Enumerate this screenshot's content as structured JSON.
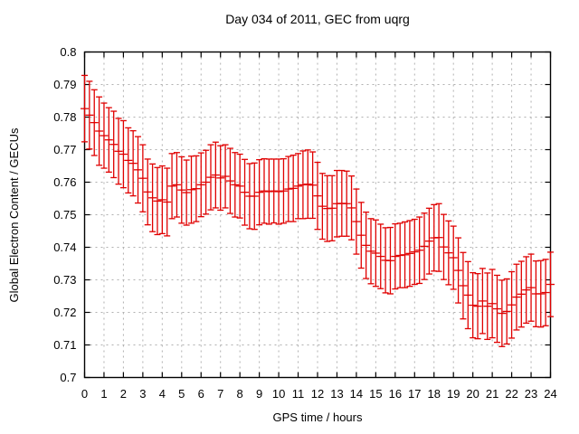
{
  "window": {
    "background": "#ffffff"
  },
  "chart_data": {
    "type": "scatter",
    "subtype": "yerrorbars",
    "title": "Day 034 of 2011, GEC from uqrg",
    "xlabel": "GPS time / hours",
    "ylabel": "Global Electron Content / GECUs",
    "xlim": [
      0,
      24
    ],
    "ylim": [
      0.7,
      0.8
    ],
    "grid": true,
    "legend": "none",
    "xticks": [
      0,
      1,
      2,
      3,
      4,
      5,
      6,
      7,
      8,
      9,
      10,
      11,
      12,
      13,
      14,
      15,
      16,
      17,
      18,
      19,
      20,
      21,
      22,
      23,
      24
    ],
    "ytick_values": [
      0.7,
      0.71,
      0.72,
      0.73,
      0.74,
      0.75,
      0.76,
      0.77,
      0.78,
      0.79,
      0.8
    ],
    "ytick_labels": [
      "0.7",
      "0.71",
      "0.72",
      "0.73",
      "0.74",
      "0.75",
      "0.76",
      "0.77",
      "0.78",
      "0.79",
      "0.8"
    ],
    "series_name": "GEC",
    "series_color": "#e00000",
    "grid_color": "#b0b0b0",
    "axis_color": "#000000",
    "points_format": [
      "gps_hour",
      "gec_value",
      "error_half_width"
    ],
    "points": [
      [
        0.0,
        0.7826,
        0.0102
      ],
      [
        0.25,
        0.7806,
        0.0104
      ],
      [
        0.5,
        0.7783,
        0.0101
      ],
      [
        0.75,
        0.7757,
        0.0105
      ],
      [
        1.0,
        0.7743,
        0.01
      ],
      [
        1.25,
        0.773,
        0.0099
      ],
      [
        1.5,
        0.7716,
        0.0102
      ],
      [
        1.75,
        0.7695,
        0.0101
      ],
      [
        2.0,
        0.7686,
        0.0103
      ],
      [
        2.25,
        0.7667,
        0.01
      ],
      [
        2.5,
        0.7658,
        0.01
      ],
      [
        2.75,
        0.7638,
        0.0102
      ],
      [
        3.0,
        0.7612,
        0.0103
      ],
      [
        3.25,
        0.757,
        0.0101
      ],
      [
        3.5,
        0.7552,
        0.0104
      ],
      [
        3.75,
        0.7542,
        0.0103
      ],
      [
        4.0,
        0.7546,
        0.0104
      ],
      [
        4.25,
        0.7539,
        0.0104
      ],
      [
        4.5,
        0.7588,
        0.01
      ],
      [
        4.75,
        0.7592,
        0.0099
      ],
      [
        5.0,
        0.7576,
        0.0102
      ],
      [
        5.25,
        0.7568,
        0.01
      ],
      [
        5.5,
        0.7577,
        0.0103
      ],
      [
        5.75,
        0.758,
        0.0101
      ],
      [
        6.0,
        0.7592,
        0.0098
      ],
      [
        6.25,
        0.76,
        0.0098
      ],
      [
        6.5,
        0.7615,
        0.01
      ],
      [
        6.75,
        0.7622,
        0.0101
      ],
      [
        7.0,
        0.7613,
        0.0099
      ],
      [
        7.25,
        0.7618,
        0.0097
      ],
      [
        7.5,
        0.7604,
        0.01
      ],
      [
        7.75,
        0.7592,
        0.0099
      ],
      [
        8.0,
        0.7588,
        0.0098
      ],
      [
        8.25,
        0.7569,
        0.0101
      ],
      [
        8.5,
        0.7557,
        0.01
      ],
      [
        8.75,
        0.7557,
        0.0102
      ],
      [
        9.0,
        0.7569,
        0.01
      ],
      [
        9.25,
        0.7573,
        0.0099
      ],
      [
        9.5,
        0.7571,
        0.01
      ],
      [
        9.75,
        0.7573,
        0.0098
      ],
      [
        10.0,
        0.7571,
        0.01
      ],
      [
        10.25,
        0.7573,
        0.0099
      ],
      [
        10.5,
        0.7579,
        0.01
      ],
      [
        10.75,
        0.7581,
        0.0102
      ],
      [
        11.0,
        0.7588,
        0.01
      ],
      [
        11.25,
        0.7592,
        0.0104
      ],
      [
        11.5,
        0.7594,
        0.0105
      ],
      [
        11.75,
        0.7591,
        0.0102
      ],
      [
        12.0,
        0.7558,
        0.0103
      ],
      [
        12.25,
        0.7526,
        0.0101
      ],
      [
        12.5,
        0.7519,
        0.0101
      ],
      [
        12.75,
        0.752,
        0.01
      ],
      [
        13.0,
        0.7534,
        0.0102
      ],
      [
        13.25,
        0.7535,
        0.0101
      ],
      [
        13.5,
        0.7534,
        0.01
      ],
      [
        13.75,
        0.7521,
        0.0098
      ],
      [
        14.0,
        0.7479,
        0.01
      ],
      [
        14.25,
        0.7437,
        0.0101
      ],
      [
        14.5,
        0.7406,
        0.0102
      ],
      [
        14.75,
        0.7388,
        0.01
      ],
      [
        15.0,
        0.7382,
        0.0102
      ],
      [
        15.25,
        0.7372,
        0.0099
      ],
      [
        15.5,
        0.736,
        0.01
      ],
      [
        15.75,
        0.7359,
        0.0102
      ],
      [
        16.0,
        0.7372,
        0.01
      ],
      [
        16.25,
        0.7375,
        0.0099
      ],
      [
        16.5,
        0.7377,
        0.0101
      ],
      [
        16.75,
        0.7381,
        0.0101
      ],
      [
        17.0,
        0.7386,
        0.01
      ],
      [
        17.25,
        0.7391,
        0.0102
      ],
      [
        17.5,
        0.7403,
        0.0102
      ],
      [
        17.75,
        0.7419,
        0.0101
      ],
      [
        18.0,
        0.7429,
        0.0102
      ],
      [
        18.25,
        0.743,
        0.0104
      ],
      [
        18.5,
        0.7401,
        0.01
      ],
      [
        18.75,
        0.7383,
        0.0098
      ],
      [
        19.0,
        0.7368,
        0.0097
      ],
      [
        19.25,
        0.7329,
        0.01
      ],
      [
        19.5,
        0.7282,
        0.0102
      ],
      [
        19.75,
        0.7253,
        0.0103
      ],
      [
        20.0,
        0.7222,
        0.01
      ],
      [
        20.25,
        0.7219,
        0.01
      ],
      [
        20.5,
        0.7235,
        0.01
      ],
      [
        20.75,
        0.7219,
        0.0102
      ],
      [
        21.0,
        0.7227,
        0.0105
      ],
      [
        21.25,
        0.7211,
        0.0103
      ],
      [
        21.5,
        0.7197,
        0.0102
      ],
      [
        21.75,
        0.7203,
        0.01
      ],
      [
        22.0,
        0.7223,
        0.0102
      ],
      [
        22.25,
        0.7247,
        0.0101
      ],
      [
        22.5,
        0.7256,
        0.0101
      ],
      [
        22.75,
        0.7269,
        0.0102
      ],
      [
        23.0,
        0.7276,
        0.0103
      ],
      [
        23.25,
        0.7257,
        0.0101
      ],
      [
        23.5,
        0.7257,
        0.0102
      ],
      [
        23.75,
        0.7261,
        0.0102
      ],
      [
        24.0,
        0.7286,
        0.0099
      ]
    ]
  }
}
